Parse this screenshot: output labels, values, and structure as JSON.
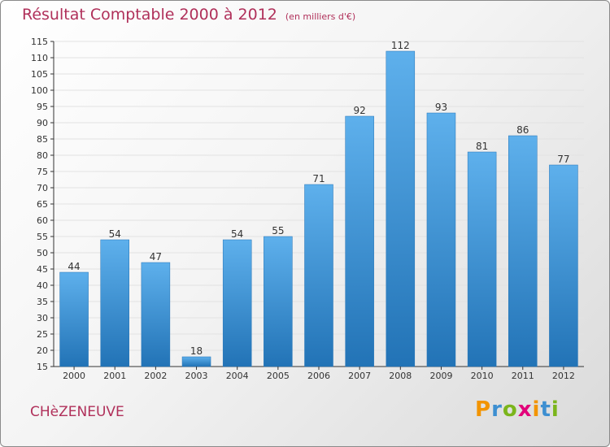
{
  "header": {
    "title": "Résultat Comptable 2000 à 2012",
    "subtitle": "(en milliers d'€)"
  },
  "footer": {
    "commune": "CHèZENEUVE",
    "logo_text": "Proxiti"
  },
  "colors": {
    "bar": "#3a8fd4",
    "bar_light": "#5eb0ec",
    "bar_dark": "#2273b6",
    "title": "#b0305a",
    "grid": "#e2e2e2",
    "axis": "#333333",
    "logo": [
      "#f29400",
      "#3d8fd1",
      "#7bb51b",
      "#e2007a",
      "#f29400",
      "#3d8fd1",
      "#7bb51b"
    ]
  },
  "chart_data": {
    "type": "bar",
    "title": "Résultat Comptable 2000 à 2012",
    "subtitle": "(en milliers d'€)",
    "xlabel": "",
    "ylabel": "",
    "categories": [
      "2000",
      "2001",
      "2002",
      "2003",
      "2004",
      "2005",
      "2006",
      "2007",
      "2008",
      "2009",
      "2010",
      "2011",
      "2012"
    ],
    "values": [
      44,
      54,
      47,
      18,
      54,
      55,
      71,
      92,
      112,
      93,
      81,
      86,
      77
    ],
    "ylim": [
      15,
      115
    ],
    "ytick_step": 5,
    "grid": true,
    "data_labels": true
  }
}
